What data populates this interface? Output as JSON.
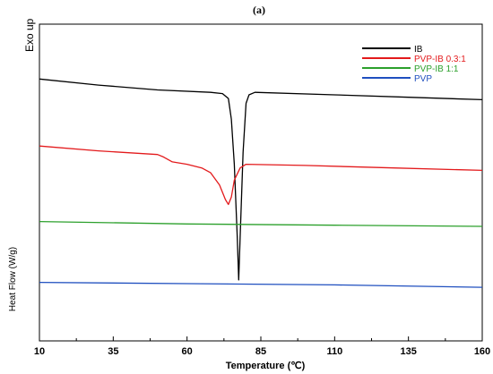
{
  "panel_label": "(a)",
  "chart_data": {
    "type": "line",
    "title": "",
    "annotation": "Exo up",
    "ylabel": "Heat Flow (W/g)",
    "xlabel": "Temperature (℃)",
    "xlim": [
      10,
      160
    ],
    "xticks": [
      10,
      35,
      60,
      85,
      110,
      135,
      160
    ],
    "y_ticks_shown": false,
    "grid": false,
    "legend_position": "top-right",
    "series": [
      {
        "name": "IB",
        "color": "#000000",
        "points": [
          [
            10,
            0.95
          ],
          [
            30,
            0.9
          ],
          [
            50,
            0.86
          ],
          [
            68,
            0.84
          ],
          [
            72,
            0.83
          ],
          [
            74,
            0.79
          ],
          [
            75,
            0.62
          ],
          [
            76,
            0.25
          ],
          [
            77,
            -0.35
          ],
          [
            77.5,
            -0.7
          ],
          [
            78,
            -0.35
          ],
          [
            79,
            0.35
          ],
          [
            80,
            0.75
          ],
          [
            81,
            0.82
          ],
          [
            83,
            0.84
          ],
          [
            110,
            0.82
          ],
          [
            135,
            0.8
          ],
          [
            160,
            0.78
          ]
        ]
      },
      {
        "name": "PVP-IB 0.3:1",
        "color": "#e31a1c",
        "points": [
          [
            10,
            0.4
          ],
          [
            30,
            0.36
          ],
          [
            50,
            0.33
          ],
          [
            52,
            0.31
          ],
          [
            55,
            0.27
          ],
          [
            60,
            0.25
          ],
          [
            65,
            0.22
          ],
          [
            68,
            0.18
          ],
          [
            71,
            0.08
          ],
          [
            73,
            -0.04
          ],
          [
            74,
            -0.08
          ],
          [
            75,
            -0.02
          ],
          [
            76,
            0.12
          ],
          [
            78,
            0.22
          ],
          [
            80,
            0.25
          ],
          [
            100,
            0.24
          ],
          [
            130,
            0.22
          ],
          [
            160,
            0.2
          ]
        ]
      },
      {
        "name": "PVP-IB 1:1",
        "color": "#2ca02c",
        "points": [
          [
            10,
            -0.22
          ],
          [
            60,
            -0.24
          ],
          [
            110,
            -0.25
          ],
          [
            160,
            -0.26
          ]
        ]
      },
      {
        "name": "PVP",
        "color": "#1f4fbf",
        "points": [
          [
            10,
            -0.72
          ],
          [
            60,
            -0.73
          ],
          [
            110,
            -0.74
          ],
          [
            160,
            -0.76
          ]
        ]
      }
    ]
  }
}
